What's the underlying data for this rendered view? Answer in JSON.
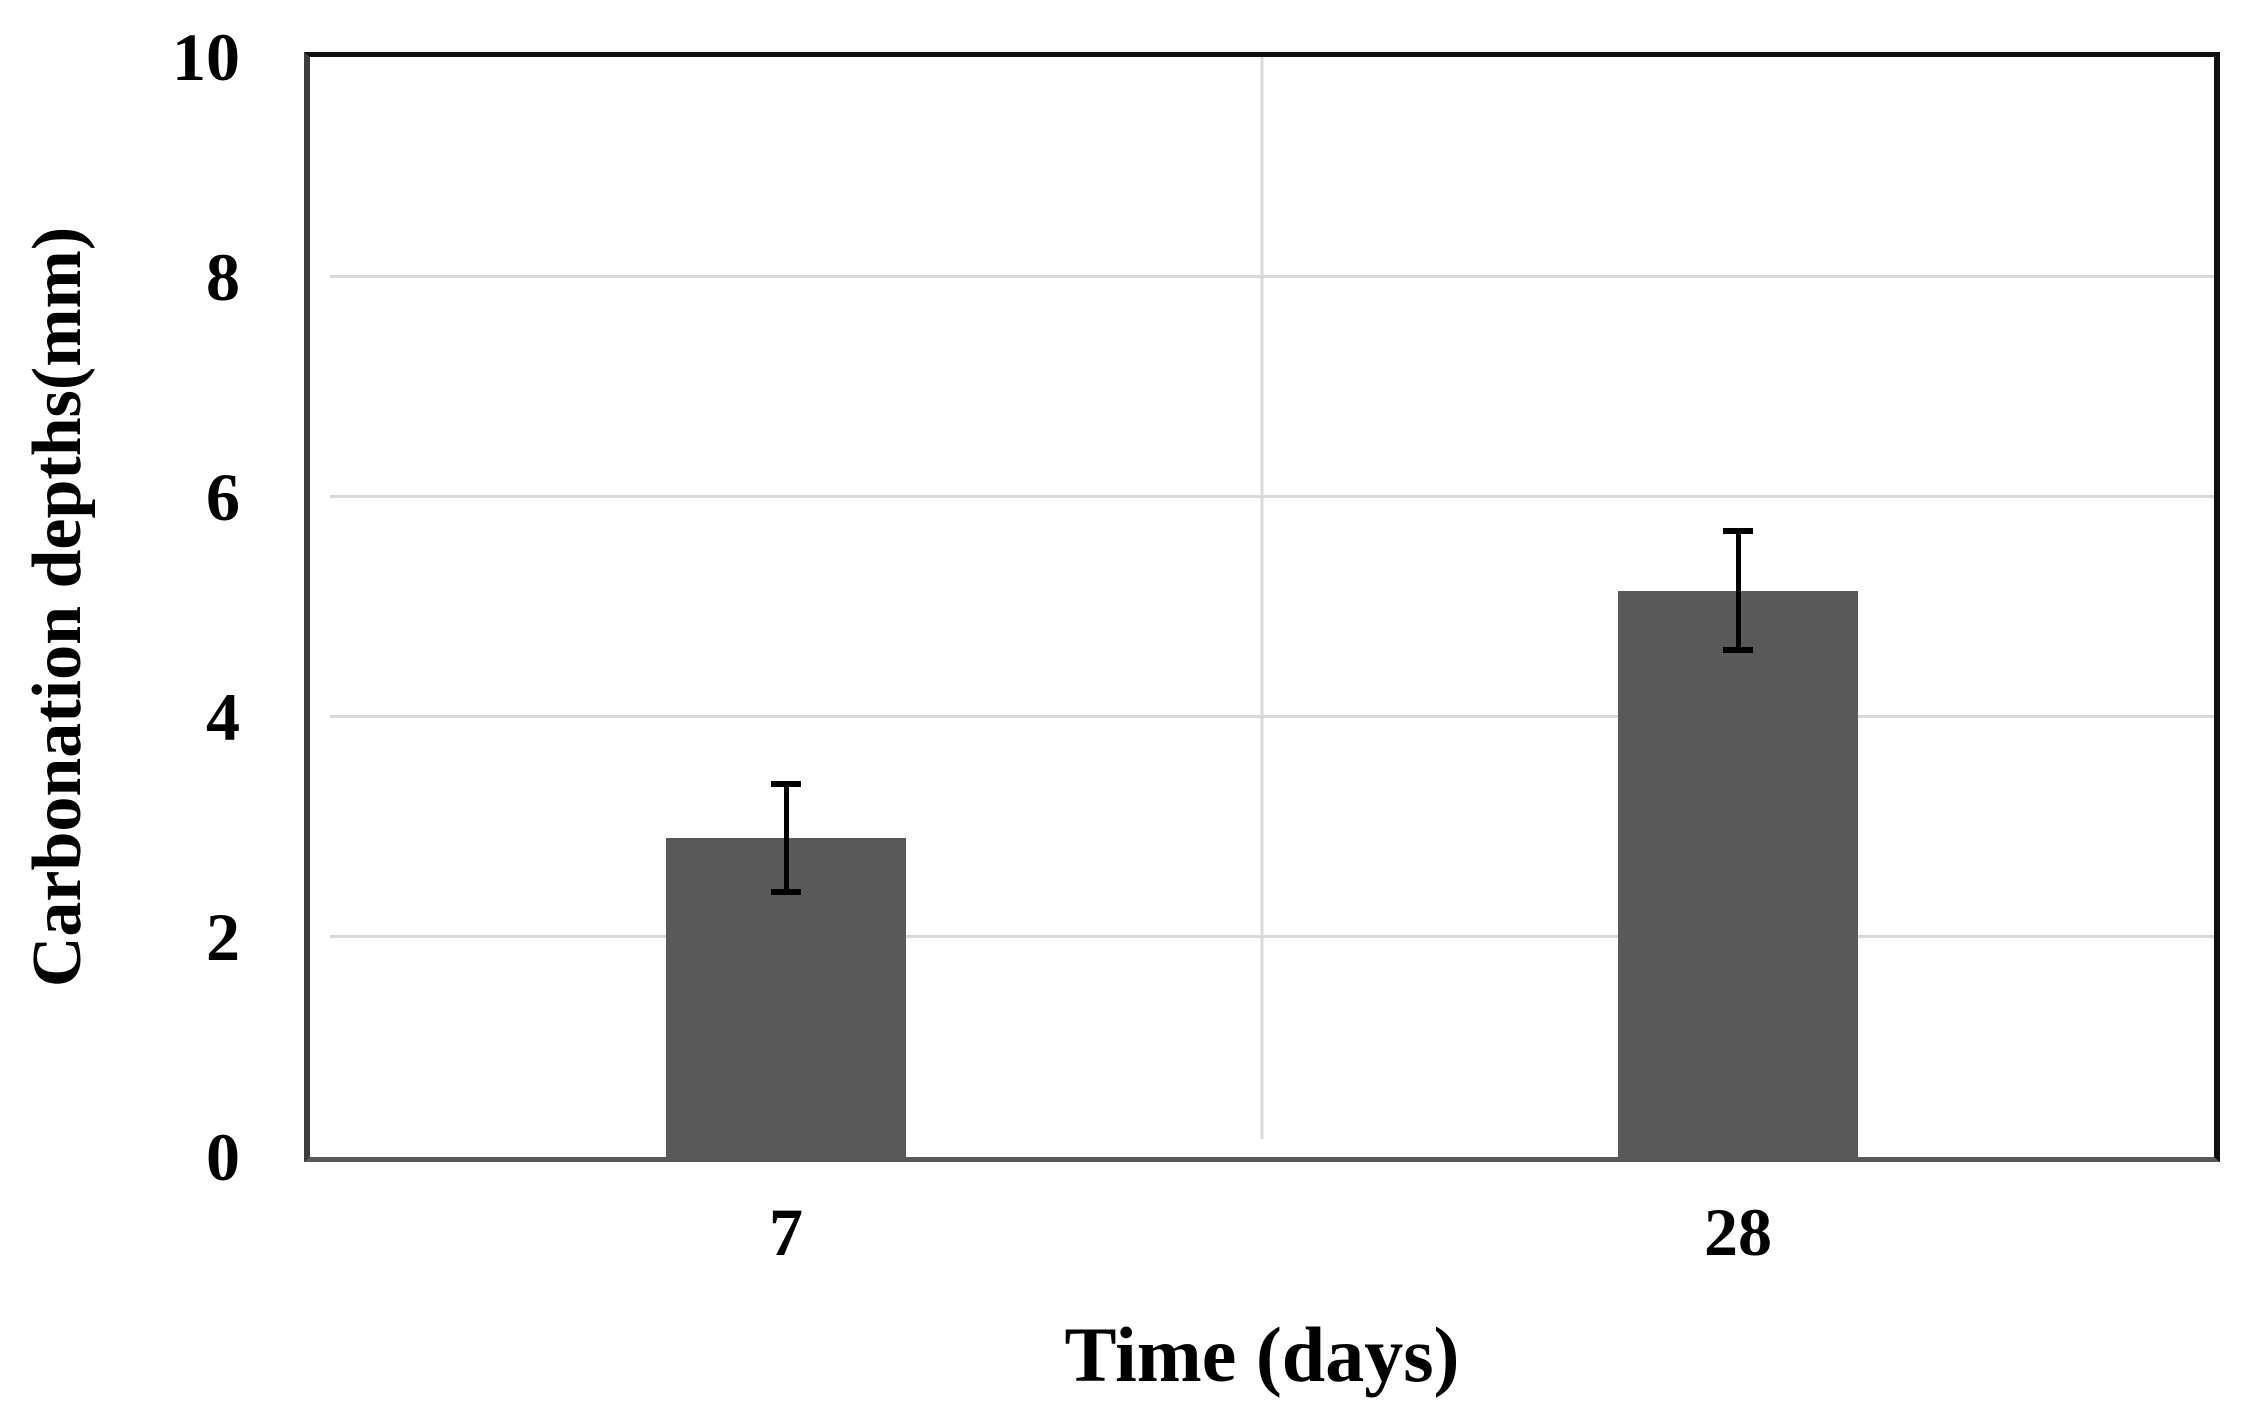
{
  "chart_data": {
    "type": "bar",
    "title": "",
    "categories": [
      "7",
      "28"
    ],
    "values": [
      2.9,
      5.15
    ],
    "error_bars": [
      0.52,
      0.57
    ],
    "xlabel": "Time (days)",
    "ylabel": "Carbonation depths(mm)",
    "ylim": [
      0,
      10
    ],
    "yticks": [
      0,
      2,
      4,
      6,
      8,
      10
    ],
    "grid": {
      "horizontal": true,
      "vertical_category_separator": true
    },
    "legend": "none",
    "colors": {
      "bar": "#595959",
      "gridline": "#d9d9d9",
      "error_bar": "#000000",
      "frame_dark": "#0f0f0f",
      "axis_gray": "#595959",
      "text": "#000000",
      "background": "#ffffff"
    }
  }
}
